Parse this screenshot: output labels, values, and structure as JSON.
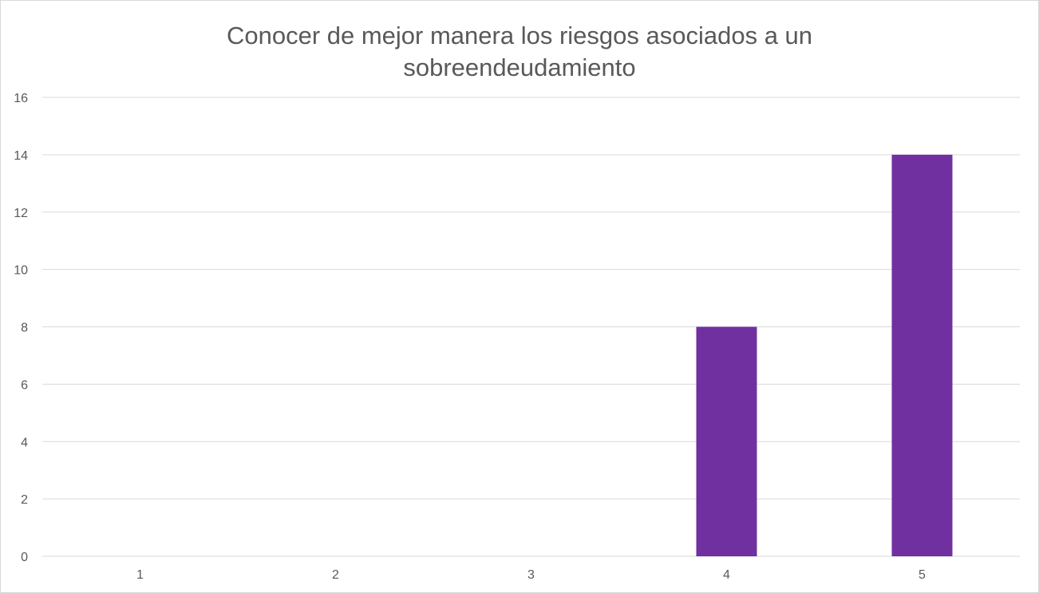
{
  "chart_data": {
    "type": "bar",
    "title_lines": [
      "Conocer de mejor manera los riesgos asociados a un",
      "sobreendeudamiento"
    ],
    "categories": [
      "1",
      "2",
      "3",
      "4",
      "5"
    ],
    "values": [
      0,
      0,
      0,
      8,
      14
    ],
    "y_ticks": [
      "0",
      "2",
      "4",
      "6",
      "8",
      "10",
      "12",
      "14",
      "16"
    ],
    "ylim": [
      0,
      16
    ],
    "xlabel": "",
    "ylabel": "",
    "grid": true,
    "legend": "none",
    "bar_color": "#7030a0",
    "grid_color": "#d9d9d9"
  }
}
